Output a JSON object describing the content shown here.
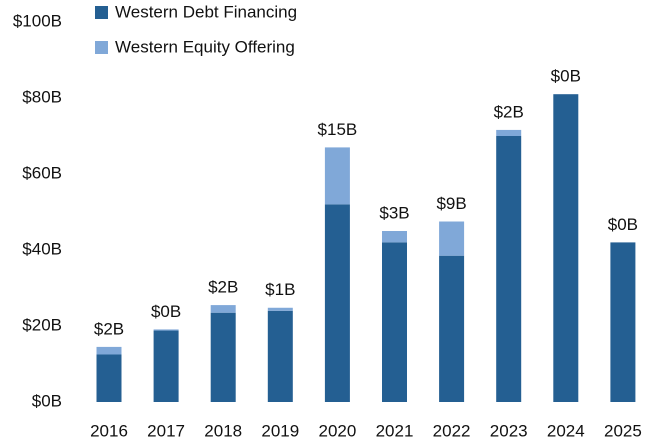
{
  "chart_data": {
    "type": "stacked_bar",
    "categories": [
      "2016",
      "2017",
      "2018",
      "2019",
      "2020",
      "2021",
      "2022",
      "2023",
      "2024",
      "2025"
    ],
    "series": [
      {
        "name": "Western Debt Financing",
        "color": "#245f92",
        "values": [
          12.5,
          18.8,
          23.5,
          24,
          52,
          42,
          38.5,
          70,
          81,
          42
        ]
      },
      {
        "name": "Western Equity Offering",
        "color": "#80a8d8",
        "values": [
          2,
          0.3,
          2,
          0.8,
          15,
          3,
          9,
          1.6,
          0,
          0
        ],
        "value_labels": [
          "$2B",
          "$0B",
          "$2B",
          "$1B",
          "$15B",
          "$3B",
          "$9B",
          "$2B",
          "$0B",
          "$0B"
        ]
      }
    ],
    "ylim": [
      0,
      100
    ],
    "yticks": [
      {
        "value": 0,
        "label": "$0B"
      },
      {
        "value": 20,
        "label": "$20B"
      },
      {
        "value": 40,
        "label": "$40B"
      },
      {
        "value": 60,
        "label": "$60B"
      },
      {
        "value": 80,
        "label": "$80B"
      },
      {
        "value": 100,
        "label": "$100B"
      }
    ],
    "legend": "top-left"
  }
}
